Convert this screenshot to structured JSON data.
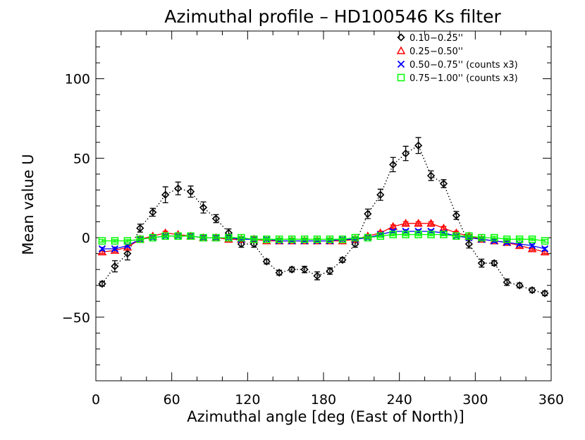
{
  "chart_data": {
    "type": "scatter",
    "title": "Azimuthal profile – HD100546 Ks filter",
    "xlabel": "Azimuthal angle [deg (East of North)]",
    "ylabel": "Mean value U",
    "xlim": [
      0,
      360
    ],
    "ylim": [
      -90,
      130
    ],
    "x_ticks": [
      0,
      60,
      120,
      180,
      240,
      300,
      360
    ],
    "y_ticks": [
      -50,
      0,
      50,
      100
    ],
    "x_tick_labels": [
      "0",
      "60",
      "120",
      "180",
      "240",
      "300",
      "360"
    ],
    "y_tick_labels": [
      "−50",
      "0",
      "50",
      "100"
    ],
    "grid": false,
    "legend_position": "top-right",
    "x": [
      5,
      15,
      25,
      35,
      45,
      55,
      65,
      75,
      85,
      95,
      105,
      115,
      125,
      135,
      145,
      155,
      165,
      175,
      185,
      195,
      205,
      215,
      225,
      235,
      245,
      255,
      265,
      275,
      285,
      295,
      305,
      315,
      325,
      335,
      345,
      355
    ],
    "series": [
      {
        "name": "0.10−0.25''",
        "marker": "diamond",
        "color": "#000000",
        "line": "dotted",
        "values": [
          -29,
          -18,
          -10,
          6,
          16,
          27,
          31,
          29,
          19,
          12,
          3,
          -4,
          -4,
          -15,
          -22,
          -20,
          -20,
          -24,
          -21,
          -14,
          -4,
          15,
          27,
          46,
          53,
          58,
          39,
          34,
          14,
          -4,
          -16,
          -16,
          -28,
          -30,
          -33,
          -35
        ],
        "errors": [
          1.5,
          3.5,
          4,
          2.5,
          2.5,
          5,
          4,
          3.5,
          3.5,
          2.5,
          2.5,
          2,
          2,
          1.5,
          1.5,
          1.5,
          2,
          2.5,
          2,
          1.5,
          2,
          3,
          3.5,
          4.5,
          4.5,
          5,
          3,
          2.5,
          2.5,
          2.5,
          2.5,
          1.5,
          2,
          1.5,
          1.5,
          1.5
        ]
      },
      {
        "name": "0.25−0.50''",
        "marker": "triangle",
        "color": "#ff0000",
        "line": "solid",
        "values": [
          -9,
          -8,
          -6,
          -1,
          1,
          3,
          2,
          1,
          0,
          0,
          -1,
          -1,
          -1,
          -2,
          -2,
          -2,
          -2,
          -2,
          -2,
          -2,
          -1,
          1,
          3,
          7,
          9,
          9,
          9,
          6,
          3,
          1,
          -1,
          -2,
          -3,
          -5,
          -7,
          -9
        ],
        "errors": [
          1,
          1,
          1,
          1,
          1,
          1,
          1,
          1,
          1,
          1,
          1,
          1,
          1,
          1,
          1,
          1,
          1,
          1,
          1,
          1,
          1,
          1,
          1,
          1,
          1,
          1,
          1,
          1,
          1,
          1,
          1,
          1,
          1,
          1,
          1,
          1
        ]
      },
      {
        "name": "0.50−0.75'' (counts x3)",
        "marker": "cross",
        "color": "#0000ff",
        "line": "solid",
        "values": [
          -7,
          -7,
          -5,
          -1,
          0,
          1,
          1,
          1,
          0,
          0,
          0,
          -1,
          -1,
          -1,
          -2,
          -2,
          -2,
          -2,
          -2,
          -1,
          -1,
          0,
          2,
          4,
          4,
          4,
          4,
          3,
          1,
          0,
          -1,
          -2,
          -3,
          -4,
          -5,
          -7
        ],
        "errors": [
          1,
          1,
          1,
          1,
          1,
          1,
          1,
          1,
          1,
          1,
          1,
          1,
          1,
          1,
          1,
          1,
          1,
          1,
          1,
          1,
          1,
          1,
          1,
          1,
          1,
          1,
          1,
          1,
          1,
          1,
          1,
          1,
          1,
          1,
          1,
          1
        ]
      },
      {
        "name": "0.75−1.00'' (counts x3)",
        "marker": "square",
        "color": "#00ff00",
        "line": "solid",
        "values": [
          -2,
          -2,
          -2,
          -1,
          0,
          1,
          1,
          1,
          0,
          0,
          0,
          0,
          -1,
          -1,
          -1,
          -1,
          -1,
          -1,
          -1,
          -1,
          0,
          0,
          1,
          2,
          2,
          2,
          2,
          2,
          1,
          1,
          0,
          0,
          -1,
          -1,
          -1,
          -2
        ],
        "errors": [
          0.8,
          0.8,
          0.8,
          0.8,
          0.8,
          0.8,
          0.8,
          0.8,
          0.8,
          0.8,
          0.8,
          0.8,
          0.8,
          0.8,
          0.8,
          0.8,
          0.8,
          0.8,
          0.8,
          0.8,
          0.8,
          0.8,
          0.8,
          0.8,
          0.8,
          0.8,
          0.8,
          0.8,
          0.8,
          0.8,
          0.8,
          0.8,
          0.8,
          0.8,
          0.8,
          0.8
        ]
      }
    ]
  }
}
